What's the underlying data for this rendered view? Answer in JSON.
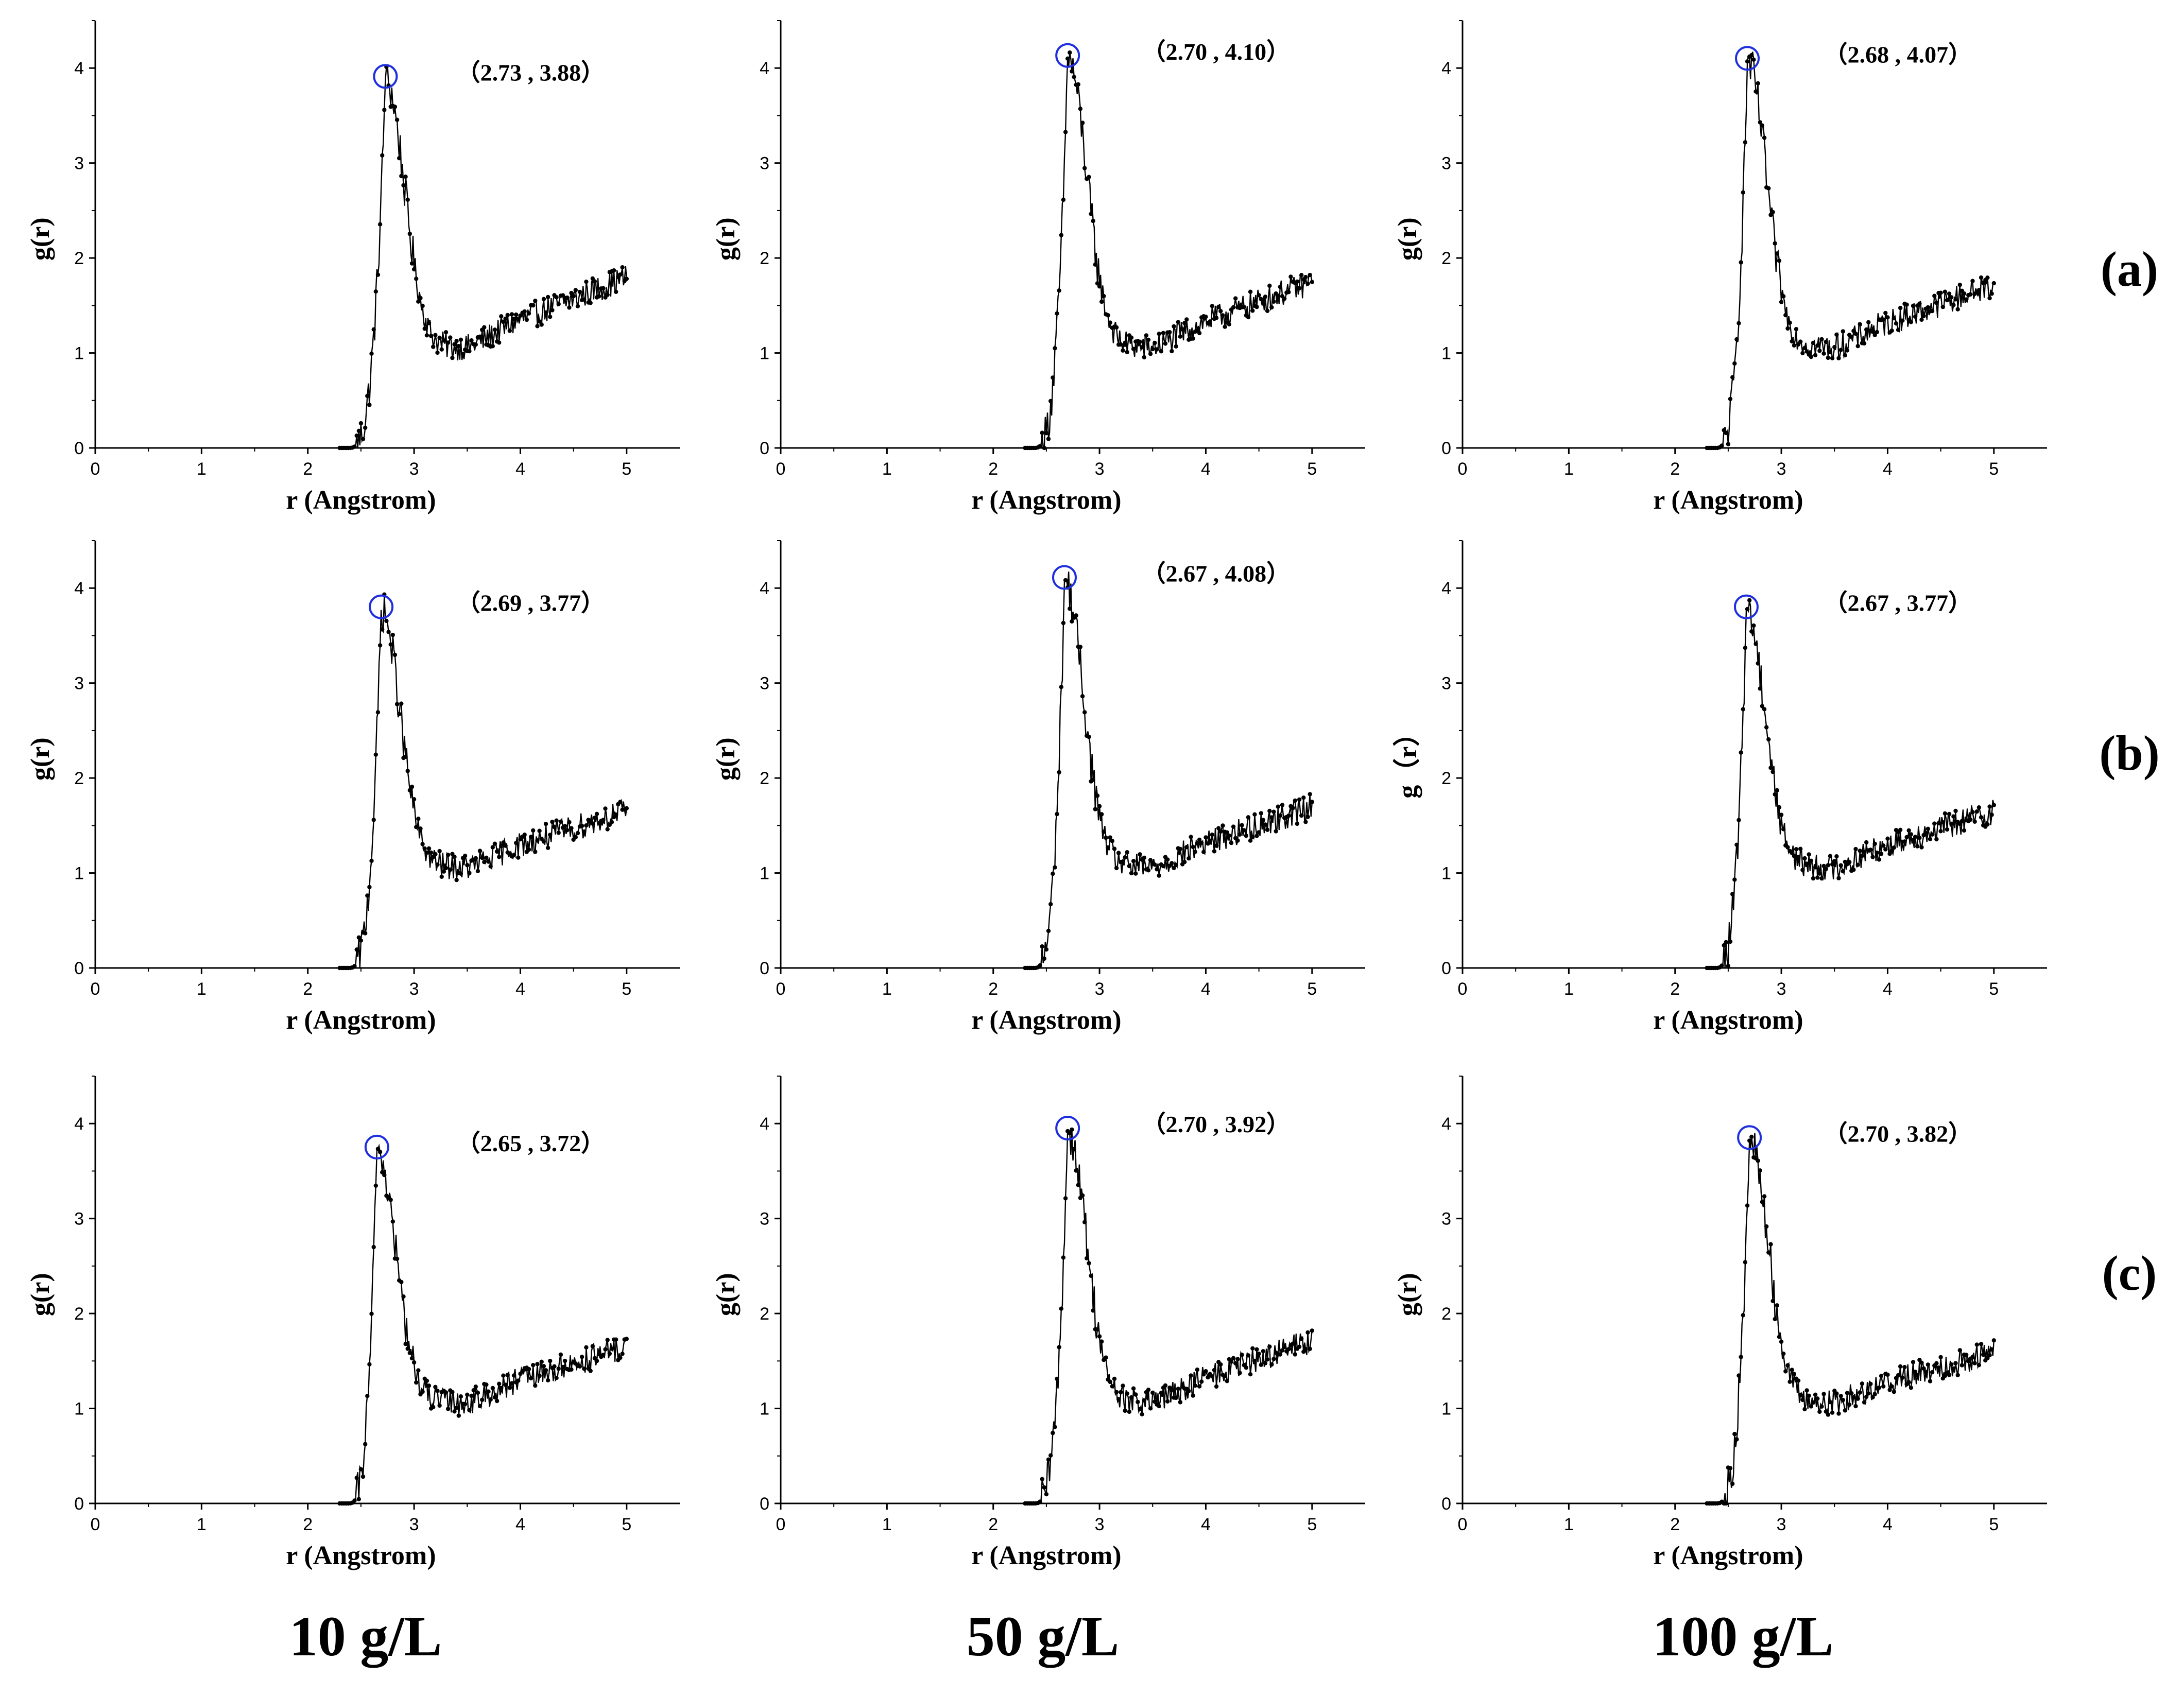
{
  "figure": {
    "row_labels": [
      "(a)",
      "(b)",
      "(c)"
    ],
    "column_labels": [
      "10 g/L",
      "50 g/L",
      "100 g/L"
    ],
    "peak_marker_color": "#1f2fe0",
    "line_color": "#000000"
  },
  "chart_data": [
    {
      "type": "line",
      "panel": "a-10",
      "row": "(a)",
      "column": "10 g/L",
      "xlabel": "r (Angstrom)",
      "ylabel": "g(r)",
      "xlim": [
        0,
        5.5
      ],
      "ylim": [
        0,
        4.5
      ],
      "xticks": [
        0,
        1,
        2,
        3,
        4,
        5
      ],
      "yticks": [
        0,
        1,
        2,
        3,
        4
      ],
      "peak": {
        "r": 2.73,
        "g": 3.88
      },
      "annotation": "（2.73 , 3.88）",
      "tail": 1.8
    },
    {
      "type": "line",
      "panel": "a-50",
      "row": "(a)",
      "column": "50 g/L",
      "xlabel": "r (Angstrom)",
      "ylabel": "g(r)",
      "xlim": [
        0,
        5.5
      ],
      "ylim": [
        0,
        4.5
      ],
      "xticks": [
        0,
        1,
        2,
        3,
        4,
        5
      ],
      "yticks": [
        0,
        1,
        2,
        3,
        4
      ],
      "peak": {
        "r": 2.7,
        "g": 4.1
      },
      "annotation": "（2.70 , 4.10）",
      "tail": 1.75
    },
    {
      "type": "line",
      "panel": "a-100",
      "row": "(a)",
      "column": "100 g/L",
      "xlabel": "r (Angstrom)",
      "ylabel": "g(r)",
      "xlim": [
        0,
        5.5
      ],
      "ylim": [
        0,
        4.5
      ],
      "xticks": [
        0,
        1,
        2,
        3,
        4,
        5
      ],
      "yticks": [
        0,
        1,
        2,
        3,
        4
      ],
      "peak": {
        "r": 2.68,
        "g": 4.07
      },
      "annotation": "（2.68 , 4.07）",
      "tail": 1.72
    },
    {
      "type": "line",
      "panel": "b-10",
      "row": "(b)",
      "column": "10 g/L",
      "xlabel": "r (Angstrom)",
      "ylabel": "g(r)",
      "xlim": [
        0,
        5.5
      ],
      "ylim": [
        0,
        4.5
      ],
      "xticks": [
        0,
        1,
        2,
        3,
        4,
        5
      ],
      "yticks": [
        0,
        1,
        2,
        3,
        4
      ],
      "peak": {
        "r": 2.69,
        "g": 3.77
      },
      "annotation": "（2.69 , 3.77）",
      "tail": 1.65
    },
    {
      "type": "line",
      "panel": "b-50",
      "row": "(b)",
      "column": "50 g/L",
      "xlabel": "r (Angstrom)",
      "ylabel": "g(r)",
      "xlim": [
        0,
        5.5
      ],
      "ylim": [
        0,
        4.5
      ],
      "xticks": [
        0,
        1,
        2,
        3,
        4,
        5
      ],
      "yticks": [
        0,
        1,
        2,
        3,
        4
      ],
      "peak": {
        "r": 2.67,
        "g": 4.08
      },
      "annotation": "（2.67 , 4.08）",
      "tail": 1.7
    },
    {
      "type": "line",
      "panel": "b-100",
      "row": "(b)",
      "column": "100 g/L",
      "xlabel": "r (Angstrom)",
      "ylabel": "g（r）",
      "xlim": [
        0,
        5.5
      ],
      "ylim": [
        0,
        4.5
      ],
      "xticks": [
        0,
        1,
        2,
        3,
        4,
        5
      ],
      "yticks": [
        0,
        1,
        2,
        3,
        4
      ],
      "peak": {
        "r": 2.67,
        "g": 3.77
      },
      "annotation": "（2.67 , 3.77）",
      "tail": 1.65
    },
    {
      "type": "line",
      "panel": "c-10",
      "row": "(c)",
      "column": "10 g/L",
      "xlabel": "r (Angstrom)",
      "ylabel": "g(r)",
      "xlim": [
        0,
        5.5
      ],
      "ylim": [
        0,
        4.5
      ],
      "xticks": [
        0,
        1,
        2,
        3,
        4,
        5
      ],
      "yticks": [
        0,
        1,
        2,
        3,
        4
      ],
      "peak": {
        "r": 2.65,
        "g": 3.72
      },
      "annotation": "（2.65 , 3.72）",
      "tail": 1.65
    },
    {
      "type": "line",
      "panel": "c-50",
      "row": "(c)",
      "column": "50 g/L",
      "xlabel": "r (Angstrom)",
      "ylabel": "g(r)",
      "xlim": [
        0,
        5.5
      ],
      "ylim": [
        0,
        4.5
      ],
      "xticks": [
        0,
        1,
        2,
        3,
        4,
        5
      ],
      "yticks": [
        0,
        1,
        2,
        3,
        4
      ],
      "peak": {
        "r": 2.7,
        "g": 3.92
      },
      "annotation": "（2.70 , 3.92）",
      "tail": 1.72
    },
    {
      "type": "line",
      "panel": "c-100",
      "row": "(c)",
      "column": "100 g/L",
      "xlabel": "r (Angstrom)",
      "ylabel": "g(r)",
      "xlim": [
        0,
        5.5
      ],
      "ylim": [
        0,
        4.5
      ],
      "xticks": [
        0,
        1,
        2,
        3,
        4,
        5
      ],
      "yticks": [
        0,
        1,
        2,
        3,
        4
      ],
      "peak": {
        "r": 2.7,
        "g": 3.82
      },
      "annotation": "（2.70 , 3.82）",
      "tail": 1.6
    }
  ]
}
